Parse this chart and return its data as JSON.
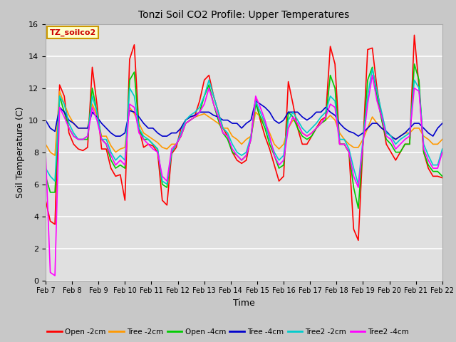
{
  "title": "Tonzi Soil CO2 Profile: Upper Temperatures",
  "xlabel": "Time",
  "ylabel": "Soil Temperature (C)",
  "ylim": [
    0,
    16
  ],
  "xlim": [
    0,
    15
  ],
  "annotation_label": "TZ_soilco2",
  "annotation_bg": "#ffffcc",
  "annotation_border": "#cc9900",
  "annotation_text_color": "#cc0000",
  "xtick_labels": [
    "Feb 7",
    "Feb 8",
    "Feb 9",
    "Feb 10",
    "Feb 11",
    "Feb 12",
    "Feb 13",
    "Feb 14",
    "Feb 15",
    "Feb 16",
    "Feb 17",
    "Feb 18",
    "Feb 19",
    "Feb 20",
    "Feb 21",
    "Feb 22"
  ],
  "series_colors": [
    "#ff0000",
    "#ff9900",
    "#00cc00",
    "#0000cc",
    "#00cccc",
    "#ff00ff"
  ],
  "series_labels": [
    "Open -2cm",
    "Tree -2cm",
    "Open -4cm",
    "Tree -4cm",
    "Tree2 -2cm",
    "Tree2 -4cm"
  ],
  "open2_data": [
    5.0,
    3.7,
    3.5,
    12.2,
    11.5,
    9.2,
    8.5,
    8.2,
    8.1,
    8.3,
    13.3,
    11.0,
    8.2,
    8.2,
    7.0,
    6.5,
    6.6,
    5.0,
    13.8,
    14.7,
    9.5,
    8.3,
    8.5,
    8.4,
    8.0,
    5.0,
    4.7,
    7.9,
    8.3,
    9.5,
    10.0,
    10.2,
    10.3,
    11.2,
    12.5,
    12.8,
    11.5,
    10.5,
    9.5,
    9.0,
    8.0,
    7.5,
    7.3,
    7.5,
    9.0,
    11.3,
    10.0,
    9.0,
    8.2,
    7.2,
    6.2,
    6.5,
    12.4,
    11.0,
    9.5,
    8.5,
    8.5,
    9.0,
    9.5,
    10.0,
    10.2,
    14.6,
    13.5,
    8.5,
    8.5,
    8.0,
    3.2,
    2.5,
    8.5,
    14.4,
    14.5,
    12.0,
    10.2,
    8.5,
    8.0,
    7.5,
    8.0,
    8.5,
    8.5,
    15.3,
    12.1,
    8.0,
    7.0,
    6.5,
    6.5,
    6.4
  ],
  "tree2_data": [
    8.5,
    8.0,
    7.8,
    11.8,
    11.0,
    10.3,
    9.8,
    9.5,
    9.5,
    9.5,
    11.0,
    10.3,
    9.0,
    9.0,
    8.4,
    8.0,
    8.2,
    8.3,
    10.8,
    10.4,
    9.8,
    9.2,
    9.0,
    8.8,
    8.6,
    8.3,
    8.2,
    8.5,
    8.5,
    9.0,
    9.8,
    10.0,
    10.2,
    10.3,
    10.4,
    10.2,
    10.0,
    9.8,
    9.5,
    9.5,
    9.0,
    8.8,
    8.5,
    8.8,
    9.0,
    10.5,
    10.2,
    9.8,
    9.2,
    8.5,
    8.2,
    8.5,
    9.5,
    10.0,
    9.8,
    9.2,
    9.0,
    9.2,
    9.5,
    9.8,
    10.0,
    10.3,
    10.0,
    9.2,
    8.8,
    8.5,
    8.3,
    8.3,
    8.8,
    9.5,
    10.2,
    9.8,
    9.5,
    9.2,
    9.0,
    8.8,
    9.0,
    9.2,
    9.2,
    9.5,
    9.5,
    9.0,
    8.8,
    8.5,
    8.5,
    8.8
  ],
  "open4_data": [
    6.5,
    5.5,
    5.5,
    11.5,
    10.5,
    9.5,
    9.0,
    8.8,
    8.8,
    8.8,
    12.0,
    10.5,
    8.8,
    8.5,
    7.5,
    7.0,
    7.2,
    7.0,
    12.5,
    13.0,
    9.5,
    8.8,
    8.8,
    8.5,
    8.2,
    6.0,
    5.8,
    8.0,
    8.5,
    9.0,
    9.8,
    10.0,
    10.2,
    10.5,
    11.5,
    12.2,
    11.0,
    10.0,
    9.2,
    8.8,
    8.0,
    7.8,
    7.5,
    7.8,
    8.8,
    11.0,
    10.2,
    9.5,
    8.5,
    7.8,
    7.0,
    7.2,
    10.5,
    10.2,
    9.5,
    9.0,
    8.8,
    9.0,
    9.5,
    9.8,
    10.0,
    12.8,
    12.0,
    8.5,
    8.5,
    8.0,
    5.8,
    4.5,
    8.5,
    12.5,
    13.3,
    11.5,
    10.0,
    8.8,
    8.5,
    8.0,
    8.0,
    8.5,
    8.5,
    13.5,
    12.5,
    8.0,
    7.2,
    6.8,
    6.8,
    6.5
  ],
  "tree4_data": [
    10.0,
    9.5,
    9.3,
    10.8,
    10.5,
    10.0,
    9.8,
    9.5,
    9.5,
    9.5,
    10.5,
    10.2,
    9.8,
    9.5,
    9.2,
    9.0,
    9.0,
    9.2,
    10.6,
    10.5,
    10.2,
    9.8,
    9.5,
    9.5,
    9.2,
    9.0,
    9.0,
    9.2,
    9.2,
    9.5,
    10.0,
    10.2,
    10.3,
    10.5,
    10.5,
    10.5,
    10.3,
    10.2,
    10.0,
    10.0,
    9.8,
    9.8,
    9.5,
    9.8,
    10.0,
    11.2,
    11.0,
    10.8,
    10.5,
    10.0,
    9.8,
    10.0,
    10.5,
    10.5,
    10.5,
    10.2,
    10.0,
    10.2,
    10.5,
    10.5,
    10.8,
    10.5,
    10.3,
    9.8,
    9.5,
    9.3,
    9.2,
    9.0,
    9.2,
    9.5,
    9.8,
    9.8,
    9.5,
    9.3,
    9.0,
    8.8,
    9.0,
    9.2,
    9.5,
    9.8,
    9.8,
    9.5,
    9.2,
    9.0,
    9.5,
    9.8
  ],
  "tree2_2cm_data": [
    7.0,
    6.5,
    6.2,
    11.5,
    11.0,
    9.8,
    9.2,
    8.8,
    8.8,
    9.0,
    11.5,
    10.5,
    8.8,
    8.8,
    8.0,
    7.5,
    7.8,
    7.5,
    12.0,
    11.5,
    9.5,
    9.0,
    8.8,
    8.5,
    8.2,
    6.2,
    6.0,
    8.0,
    8.5,
    9.2,
    10.0,
    10.3,
    10.5,
    10.8,
    11.5,
    12.5,
    11.5,
    10.5,
    9.5,
    9.2,
    8.5,
    8.0,
    7.8,
    8.0,
    9.0,
    11.2,
    10.5,
    9.8,
    8.8,
    8.0,
    7.5,
    7.8,
    10.0,
    10.5,
    10.0,
    9.5,
    9.2,
    9.5,
    9.8,
    10.2,
    10.5,
    11.5,
    11.2,
    8.8,
    8.8,
    8.2,
    7.0,
    6.0,
    8.8,
    11.5,
    13.2,
    11.8,
    10.5,
    9.2,
    9.0,
    8.5,
    8.8,
    9.0,
    9.2,
    12.5,
    12.0,
    8.5,
    7.8,
    7.2,
    7.2,
    8.2
  ],
  "tree2_4cm_data": [
    8.0,
    7.5,
    7.0,
    10.8,
    10.2,
    9.5,
    9.0,
    8.8,
    8.8,
    9.0,
    10.8,
    10.0,
    8.8,
    8.5,
    7.8,
    7.2,
    7.5,
    7.2,
    11.0,
    10.8,
    9.2,
    8.8,
    8.5,
    8.2,
    8.0,
    6.5,
    6.2,
    8.2,
    8.5,
    9.0,
    9.8,
    10.0,
    10.2,
    10.5,
    11.0,
    12.0,
    11.0,
    10.2,
    9.2,
    9.0,
    8.2,
    7.8,
    7.5,
    7.8,
    8.8,
    11.5,
    10.8,
    10.0,
    9.0,
    7.8,
    7.2,
    7.5,
    9.5,
    10.2,
    9.8,
    9.2,
    9.0,
    9.2,
    9.5,
    9.8,
    10.2,
    11.0,
    10.8,
    8.5,
    8.5,
    8.0,
    6.5,
    5.8,
    8.5,
    11.0,
    12.8,
    11.2,
    10.2,
    9.0,
    8.8,
    8.2,
    8.5,
    8.8,
    9.0,
    12.0,
    11.8,
    8.2,
    7.5,
    7.0,
    7.0,
    8.0
  ],
  "magenta_drop": [
    8.0,
    0.5,
    0.3,
    10.8,
    10.2,
    9.5,
    9.0,
    8.8,
    8.8,
    9.0,
    10.8,
    10.0,
    8.8,
    8.5,
    7.8,
    7.2,
    7.5,
    7.2,
    11.0,
    10.8,
    9.2,
    8.8,
    8.5,
    8.2,
    8.0,
    6.5,
    6.2,
    8.2,
    8.5,
    9.0,
    9.8,
    10.0,
    10.2,
    10.5,
    11.0,
    12.0,
    11.0,
    10.2,
    9.2,
    9.0,
    8.2,
    7.8,
    7.5,
    7.8,
    8.8,
    11.5,
    10.8,
    10.0,
    9.0,
    7.8,
    7.2,
    7.5,
    9.5,
    10.2,
    9.8,
    9.2,
    9.0,
    9.2,
    9.5,
    9.8,
    10.2,
    11.0,
    10.8,
    8.5,
    8.5,
    8.0,
    6.5,
    5.8,
    8.5,
    11.0,
    12.8,
    11.2,
    10.2,
    9.0,
    8.8,
    8.2,
    8.5,
    8.8,
    9.0,
    12.0,
    11.8,
    8.2,
    7.5,
    7.0,
    7.0,
    8.0
  ]
}
